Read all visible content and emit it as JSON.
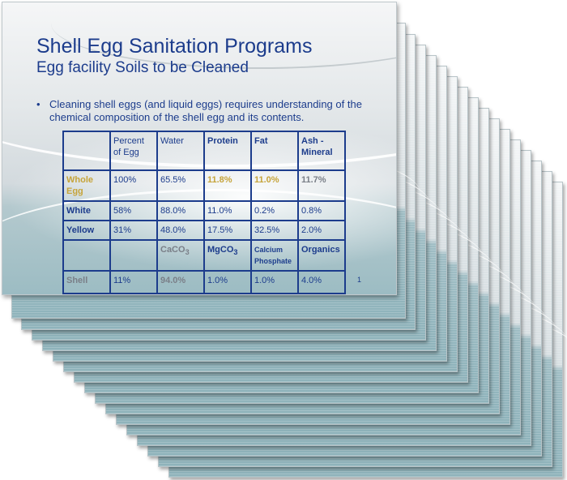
{
  "slide": {
    "title": "Shell Egg Sanitation Programs",
    "subtitle": "Egg facility Soils to be Cleaned",
    "bullet": "Cleaning shell eggs (and liquid eggs) requires understanding of the chemical composition of the shell egg and its contents.",
    "bullet_marker": "•",
    "page_number": "1"
  },
  "table": {
    "header": [
      "",
      "Percent of Egg",
      "Water",
      "Protein",
      "Fat",
      "Ash - Mineral"
    ],
    "rows": [
      [
        "Whole Egg",
        "100%",
        "65.5%",
        "11.8%",
        "11.0%",
        "11.7%"
      ],
      [
        "White",
        "58%",
        "88.0%",
        "11.0%",
        "0.2%",
        "0.8%"
      ],
      [
        "Yellow",
        "31%",
        "48.0%",
        "17.5%",
        "32.5%",
        "2.0%"
      ]
    ],
    "shell_header": {
      "c0": "",
      "c1": "",
      "c2": "CaCO",
      "c2_sub": "3",
      "c3": "MgCO",
      "c3_sub": "3",
      "c4": "Calcium Phosphate",
      "c5": "Organics"
    },
    "shell_row": [
      "Shell",
      "11%",
      "94.0%",
      "1.0%",
      "1.0%",
      "4.0%"
    ]
  },
  "colors": {
    "text": "#1c3c8c",
    "gold": "#c6a43a",
    "gray": "#7a7f88",
    "teal": "#9cbcc3"
  }
}
